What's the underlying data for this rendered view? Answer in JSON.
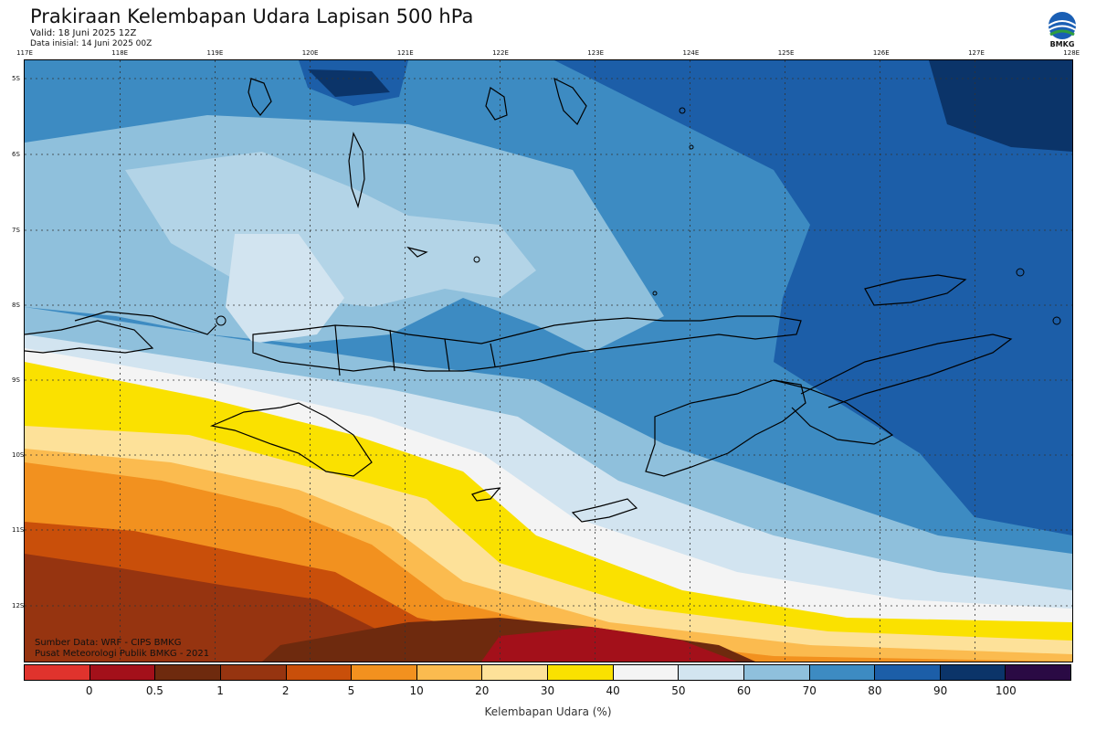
{
  "header": {
    "title": "Prakiraan Kelembapan Udara Lapisan 500 hPa",
    "valid": "Valid: 18 Juni 2025 12Z",
    "init": "Data inisial: 14 Juni 2025 00Z",
    "logo_text": "BMKG"
  },
  "map": {
    "lon_ticks": [
      "117E",
      "118E",
      "119E",
      "120E",
      "121E",
      "122E",
      "123E",
      "124E",
      "125E",
      "126E",
      "127E",
      "128E"
    ],
    "lat_ticks": [
      "5S",
      "6S",
      "7S",
      "8S",
      "9S",
      "10S",
      "11S",
      "12S"
    ],
    "credits": [
      "Sumber Data: WRF - CIPS BMKG",
      "Pusat Meteorologi Publik BMKG - 2021"
    ]
  },
  "legend": {
    "title": "Kelembapan Udara (%)",
    "colors": [
      "#e0332d",
      "#a3101a",
      "#6e2a0e",
      "#963410",
      "#c94f0a",
      "#f2911f",
      "#fbbb4f",
      "#fde199",
      "#fae100",
      "#f4f4f4",
      "#d2e4f0",
      "#8fc0dc",
      "#3d8bc2",
      "#1c5ea8",
      "#0b3469",
      "#2a0a44"
    ],
    "labels": [
      "0",
      "0.5",
      "1",
      "2",
      "5",
      "10",
      "20",
      "30",
      "40",
      "50",
      "60",
      "70",
      "80",
      "90",
      "100"
    ]
  }
}
